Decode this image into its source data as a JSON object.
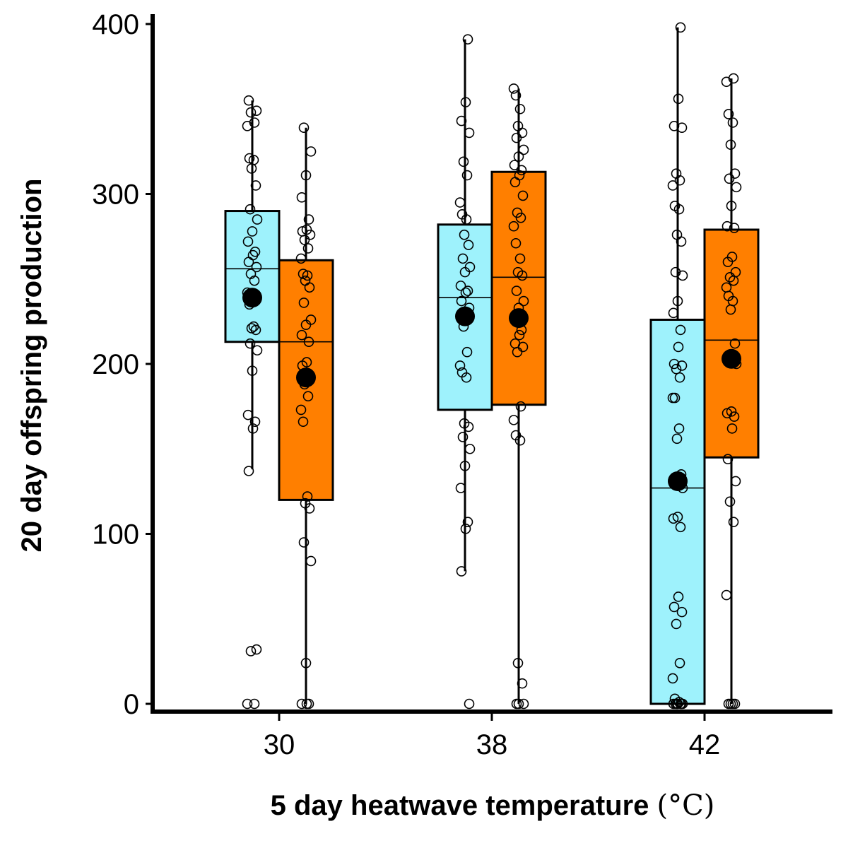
{
  "chart_data": {
    "type": "boxplot",
    "xlabel": "5 day heatwave temperature (°C)",
    "xlabel_main": "5 day heatwave temperature ",
    "xlabel_unit": "(°C)",
    "ylabel": "20 day offspring production",
    "ylim": [
      0,
      400
    ],
    "yticks": [
      "0",
      "100",
      "200",
      "300",
      "400"
    ],
    "categories": [
      "30",
      "38",
      "42"
    ],
    "legend": "none",
    "grid": false,
    "series": [
      {
        "color": "#9ef2fc",
        "boxes": [
          {
            "category": "30",
            "whisker_low": 138,
            "q1": 213,
            "median": 256,
            "q3": 290,
            "whisker_high": 355,
            "mean": 239,
            "points": [
              0,
              0,
              31,
              32,
              137,
              162,
              166,
              170,
              196,
              208,
              212,
              220,
              221,
              222,
              235,
              242,
              249,
              253,
              257,
              260,
              264,
              266,
              272,
              278,
              285,
              291,
              305,
              315,
              320,
              321,
              340,
              342,
              348,
              349,
              355
            ]
          },
          {
            "category": "38",
            "whisker_low": 78,
            "q1": 173,
            "median": 239,
            "q3": 282,
            "whisker_high": 391,
            "mean": 228,
            "points": [
              0,
              78,
              103,
              107,
              127,
              140,
              150,
              157,
              163,
              165,
              192,
              195,
              199,
              207,
              222,
              233,
              237,
              242,
              243,
              246,
              254,
              257,
              262,
              270,
              276,
              285,
              288,
              295,
              311,
              319,
              336,
              343,
              354,
              391
            ]
          },
          {
            "category": "42",
            "whisker_low": 0,
            "q1": 0,
            "median": 127,
            "q3": 226,
            "whisker_high": 398,
            "mean": 131,
            "points": [
              0,
              0,
              0,
              0,
              0,
              0,
              0,
              1,
              3,
              15,
              24,
              47,
              54,
              57,
              63,
              104,
              109,
              110,
              127,
              133,
              135,
              156,
              162,
              180,
              180,
              192,
              197,
              199,
              200,
              210,
              220,
              230,
              237,
              252,
              254,
              272,
              276,
              291,
              293,
              305,
              308,
              312,
              339,
              340,
              356,
              398
            ]
          }
        ]
      },
      {
        "color": "#ff7f00",
        "boxes": [
          {
            "category": "30",
            "whisker_low": 0,
            "q1": 120,
            "median": 213,
            "q3": 261,
            "whisker_high": 339,
            "mean": 192,
            "points": [
              0,
              0,
              0,
              24,
              84,
              95,
              115,
              118,
              122,
              166,
              173,
              181,
              188,
              193,
              199,
              201,
              213,
              217,
              223,
              226,
              236,
              245,
              249,
              252,
              253,
              262,
              268,
              273,
              276,
              278,
              279,
              285,
              298,
              311,
              325,
              339
            ]
          },
          {
            "category": "38",
            "whisker_low": 0,
            "q1": 176,
            "median": 251,
            "q3": 313,
            "whisker_high": 362,
            "mean": 227,
            "points": [
              0,
              0,
              0,
              12,
              24,
              155,
              158,
              167,
              175,
              207,
              210,
              212,
              217,
              220,
              228,
              233,
              237,
              243,
              252,
              254,
              262,
              271,
              281,
              286,
              289,
              299,
              307,
              311,
              314,
              317,
              322,
              326,
              333,
              336,
              340,
              350,
              358,
              362
            ]
          },
          {
            "category": "42",
            "whisker_low": 0,
            "q1": 145,
            "median": 214,
            "q3": 279,
            "whisker_high": 368,
            "mean": 203,
            "points": [
              0,
              0,
              0,
              0,
              64,
              107,
              119,
              131,
              144,
              162,
              169,
              171,
              172,
              200,
              205,
              212,
              232,
              237,
              240,
              245,
              249,
              251,
              254,
              260,
              263,
              280,
              281,
              293,
              304,
              309,
              312,
              329,
              342,
              347,
              366,
              368
            ]
          }
        ]
      }
    ]
  }
}
